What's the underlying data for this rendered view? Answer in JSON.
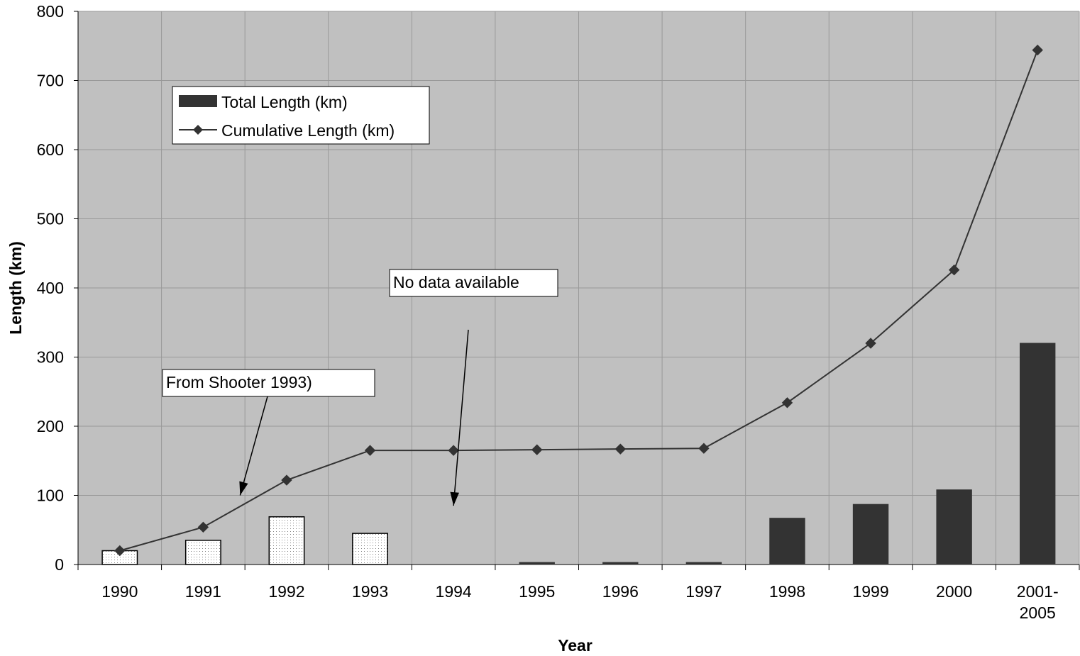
{
  "chart_data": {
    "type": "bar",
    "title": "",
    "xlabel": "Year",
    "ylabel": "Length (km)",
    "ylim": [
      0,
      800
    ],
    "yticks": [
      0,
      100,
      200,
      300,
      400,
      500,
      600,
      700,
      800
    ],
    "grid": true,
    "legend_position": "top-left",
    "categories": [
      "1990",
      "1991",
      "1992",
      "1993",
      "1994",
      "1995",
      "1996",
      "1997",
      "1998",
      "1999",
      "2000",
      "2001-2005"
    ],
    "category_label_lines": [
      [
        "1990"
      ],
      [
        "1991"
      ],
      [
        "1992"
      ],
      [
        "1993"
      ],
      [
        "1994"
      ],
      [
        "1995"
      ],
      [
        "1996"
      ],
      [
        "1997"
      ],
      [
        "1998"
      ],
      [
        "1999"
      ],
      [
        "2000"
      ],
      [
        "2001-",
        "2005"
      ]
    ],
    "series": [
      {
        "name": "Total Length (km)",
        "type": "bar",
        "values": [
          20,
          35,
          69,
          45,
          null,
          3,
          3,
          3,
          67,
          87,
          108,
          320
        ],
        "dotted_pattern_categories": [
          "1990",
          "1991",
          "1992",
          "1993"
        ]
      },
      {
        "name": "Cumulative Length (km)",
        "type": "line",
        "marker": "diamond",
        "values": [
          20,
          54,
          122,
          165,
          165,
          166,
          167,
          168,
          234,
          320,
          426,
          744
        ]
      }
    ],
    "annotations": [
      {
        "text": "From Shooter 1993)",
        "arrow_to_category": "1991",
        "arrow_to_value": 100
      },
      {
        "text": "No data available",
        "arrow_to_category": "1994",
        "arrow_to_value": 85
      }
    ],
    "colors": {
      "plot_background": "#c0c0c0",
      "bar_fill": "#333333",
      "pattern_fill": "#ffffff",
      "pattern_dot": "#808080",
      "line": "#333333",
      "gridline": "#999999"
    }
  }
}
